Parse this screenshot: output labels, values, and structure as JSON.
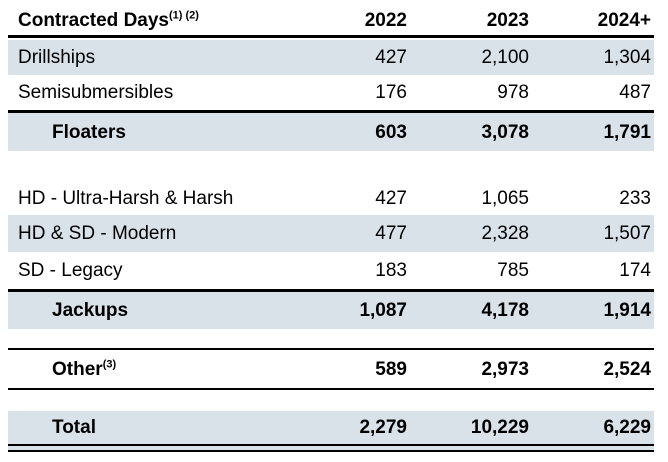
{
  "table": {
    "header": {
      "label": "Contracted Days",
      "sup": "(1) (2)",
      "columns": [
        "2022",
        "2023",
        "2024+"
      ]
    },
    "rows": [
      {
        "label": "Drillships",
        "values": [
          "427",
          "2,100",
          "1,304"
        ]
      },
      {
        "label": "Semisubmersibles",
        "values": [
          "176",
          "978",
          "487"
        ]
      },
      {
        "label": "Floaters",
        "values": [
          "603",
          "3,078",
          "1,791"
        ]
      },
      {
        "label": "HD - Ultra-Harsh & Harsh",
        "values": [
          "427",
          "1,065",
          "233"
        ]
      },
      {
        "label": "HD & SD - Modern",
        "values": [
          "477",
          "2,328",
          "1,507"
        ]
      },
      {
        "label": "SD - Legacy",
        "values": [
          "183",
          "785",
          "174"
        ]
      },
      {
        "label": "Jackups",
        "values": [
          "1,087",
          "4,178",
          "1,914"
        ]
      },
      {
        "label": "Other",
        "sup": "(3)",
        "values": [
          "589",
          "2,973",
          "2,524"
        ]
      },
      {
        "label": "Total",
        "values": [
          "2,279",
          "10,229",
          "6,229"
        ]
      }
    ],
    "colors": {
      "row_shade": "#d9e2e9",
      "rule": "#000000",
      "text": "#000000",
      "background": "#ffffff"
    }
  }
}
